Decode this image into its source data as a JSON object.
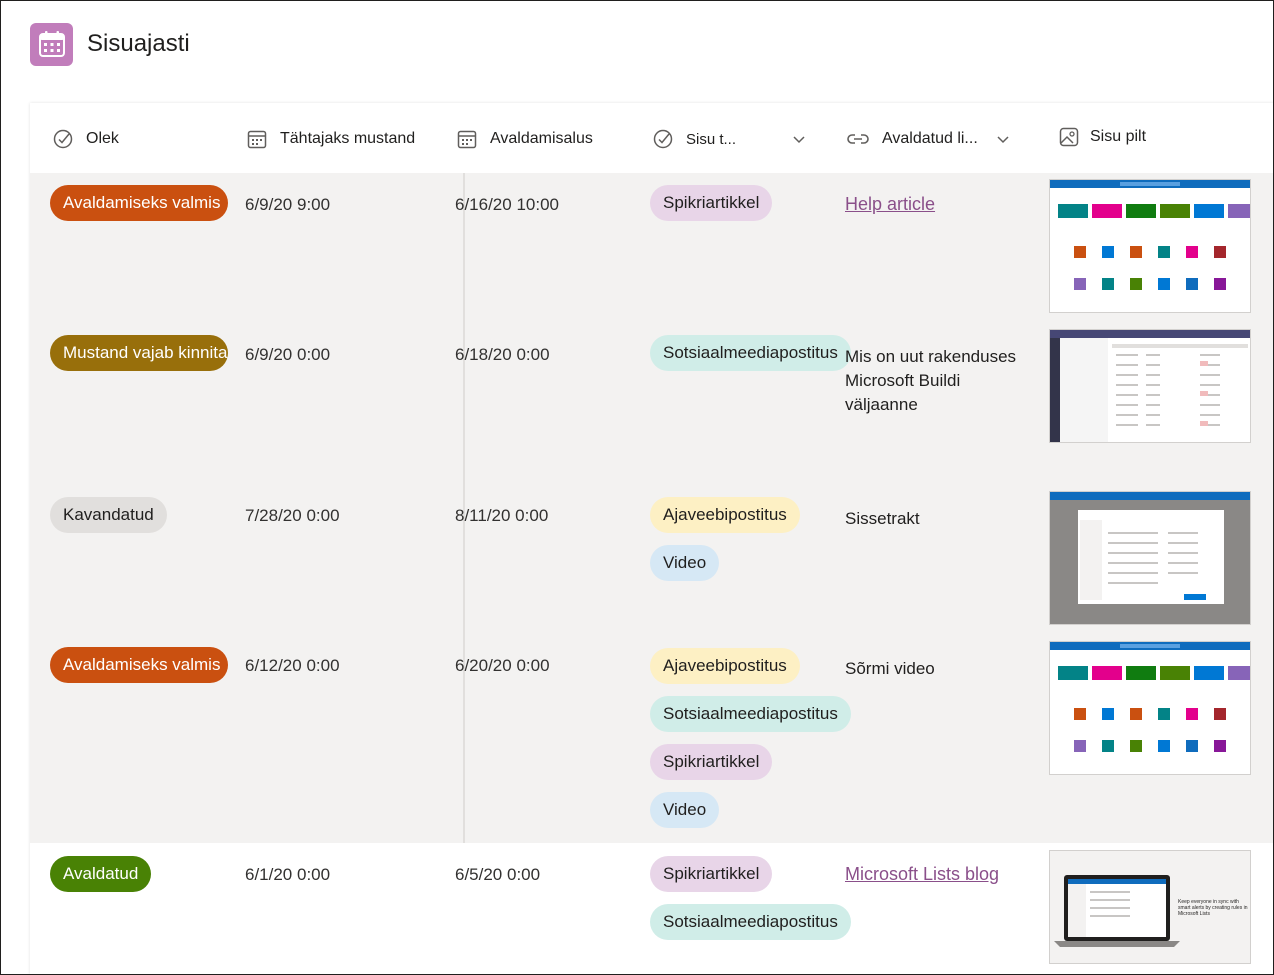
{
  "app": {
    "title": "Sisuajasti",
    "icon": "calendar-icon",
    "accent": "#c17dbb"
  },
  "columns": [
    {
      "label": "Olek",
      "icon": "status-check-icon"
    },
    {
      "label": "Tähtajaks mustand",
      "icon": "calendar-icon"
    },
    {
      "label": "Avaldamisalus",
      "icon": "calendar-icon"
    },
    {
      "label": "Sisu t...",
      "icon": "status-check-icon",
      "dropdown": true
    },
    {
      "label": "Avaldatud li...",
      "icon": "link-icon",
      "dropdown": true
    },
    {
      "label": "Sisu pilt",
      "icon": "image-icon"
    }
  ],
  "rows": [
    {
      "status": "Avaldamiseks valmis",
      "status_color": "#ca5010",
      "draft_due": "6/9/20 9:00",
      "publish": "6/16/20 10:00",
      "tags": [
        "Spikriartikkel"
      ],
      "published_link": {
        "text": "Help article",
        "is_link": true
      },
      "thumb": "app-tiles"
    },
    {
      "status": "Mustand vajab kinnitamist",
      "status_color": "#986f0b",
      "draft_due": "6/9/20 0:00",
      "publish": "6/18/20 0:00",
      "tags": [
        "Sotsiaalmeediapostitus"
      ],
      "published_link": {
        "text": "Mis on uut rakenduses Microsoft Buildi väljaanne",
        "is_link": false
      },
      "thumb": "teams-list"
    },
    {
      "status": "Kavandatud",
      "status_color": "#e1dfdd",
      "draft_due": "7/28/20 0:00",
      "publish": "8/11/20 0:00",
      "tags": [
        "Ajaveebipostitus",
        "Video"
      ],
      "published_link": {
        "text": "Sissetrakt",
        "is_link": false
      },
      "thumb": "dialog"
    },
    {
      "status": "Avaldamiseks valmis",
      "status_color": "#ca5010",
      "draft_due": "6/12/20 0:00",
      "publish": "6/20/20 0:00",
      "tags": [
        "Ajaveebipostitus",
        "Sotsiaalmeediapostitus",
        "Spikriartikkel",
        "Video"
      ],
      "published_link": {
        "text": "Sõrmi video",
        "is_link": false
      },
      "thumb": "app-tiles"
    },
    {
      "status": "Avaldatud",
      "status_color": "#498205",
      "draft_due": "6/1/20 0:00",
      "publish": "6/5/20 0:00",
      "tags": [
        "Spikriartikkel",
        "Sotsiaalmeediapostitus"
      ],
      "published_link": {
        "text": "Microsoft Lists blog",
        "is_link": true
      },
      "thumb": "laptop"
    }
  ],
  "tag_colors": {
    "Spikriartikkel": "#e8d5e8",
    "Sotsiaalmeediapostitus": "#d0ede8",
    "Ajaveebipostitus": "#fdf0c4",
    "Video": "#d6e8f5"
  },
  "thumb_texts": {
    "laptop_caption": "Keep everyone in sync with smart alerts by creating rules in Microsoft Lists"
  }
}
